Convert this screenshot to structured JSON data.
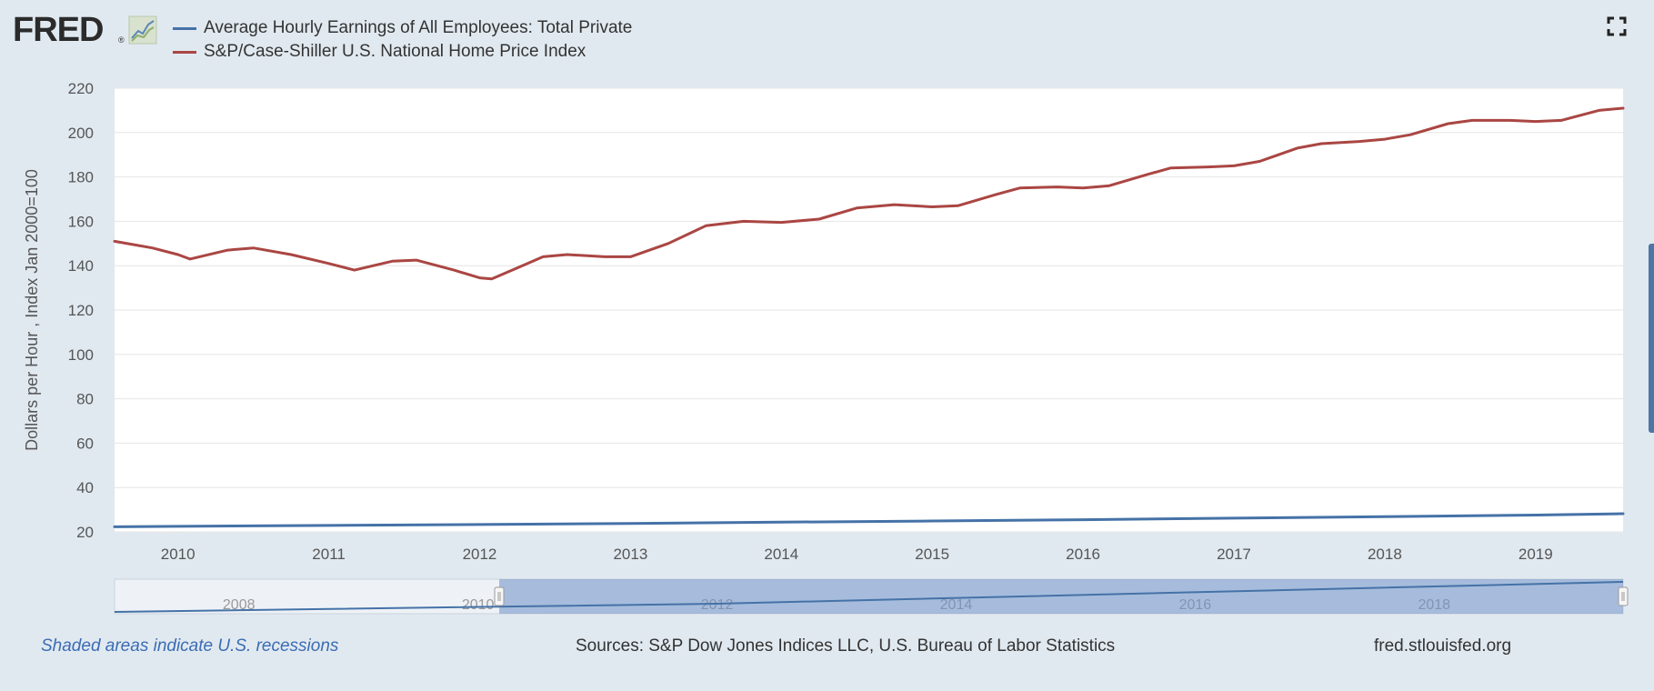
{
  "logo": {
    "text": "FRED",
    "reg": "®"
  },
  "legend": [
    {
      "label": "Average Hourly Earnings of All Employees: Total Private",
      "color": "#4572a7"
    },
    {
      "label": "S&P/Case-Shiller U.S. National Home Price Index",
      "color": "#aa4643"
    }
  ],
  "footer": {
    "recession_note": "Shaded areas indicate U.S. recessions",
    "sources": "Sources: S&P Dow Jones Indices LLC, U.S. Bureau of Labor Statistics",
    "site": "fred.stlouisfed.org"
  },
  "chart_data": {
    "type": "line",
    "ylabel": "Dollars per Hour , Index Jan 2000=100",
    "xlim": [
      2009.58,
      2019.58
    ],
    "ylim": [
      20,
      220
    ],
    "x_ticks": [
      2010,
      2011,
      2012,
      2013,
      2014,
      2015,
      2016,
      2017,
      2018,
      2019
    ],
    "y_ticks": [
      20,
      40,
      60,
      80,
      100,
      120,
      140,
      160,
      180,
      200,
      220
    ],
    "grid": true,
    "legend_position": "top-left",
    "series": [
      {
        "name": "Average Hourly Earnings of All Employees: Total Private",
        "color": "#4572a7",
        "x": [
          2009.58,
          2010.0,
          2011.0,
          2012.0,
          2013.0,
          2014.0,
          2015.0,
          2016.0,
          2017.0,
          2018.0,
          2019.0,
          2019.58
        ],
        "y": [
          22.3,
          22.5,
          22.9,
          23.3,
          23.8,
          24.4,
          24.9,
          25.5,
          26.2,
          26.9,
          27.6,
          28.2
        ]
      },
      {
        "name": "S&P/Case-Shiller U.S. National Home Price Index",
        "color": "#aa4643",
        "x": [
          2009.58,
          2009.83,
          2010.0,
          2010.08,
          2010.33,
          2010.5,
          2010.75,
          2011.0,
          2011.17,
          2011.42,
          2011.58,
          2011.83,
          2012.0,
          2012.08,
          2012.25,
          2012.42,
          2012.58,
          2012.83,
          2013.0,
          2013.25,
          2013.5,
          2013.75,
          2014.0,
          2014.25,
          2014.5,
          2014.75,
          2015.0,
          2015.17,
          2015.42,
          2015.58,
          2015.83,
          2016.0,
          2016.17,
          2016.42,
          2016.58,
          2016.83,
          2017.0,
          2017.17,
          2017.42,
          2017.58,
          2017.83,
          2018.0,
          2018.17,
          2018.42,
          2018.58,
          2018.83,
          2019.0,
          2019.17,
          2019.42,
          2019.58
        ],
        "y": [
          151,
          148,
          145,
          143,
          147,
          148,
          145,
          141,
          138,
          142,
          142.5,
          138,
          134.5,
          134,
          139,
          144,
          145,
          144,
          144,
          150,
          158,
          160,
          159.5,
          161,
          166,
          167.5,
          166.5,
          167,
          172,
          175,
          175.5,
          175,
          176,
          181,
          184,
          184.5,
          185,
          187,
          193,
          195,
          196,
          197,
          199,
          204,
          205.5,
          205.5,
          205,
          205.5,
          210,
          211
        ]
      }
    ],
    "navigator": {
      "x_labels": [
        2008,
        2010,
        2012,
        2014,
        2016,
        2018
      ],
      "window": [
        2009.58,
        2019.58
      ]
    }
  }
}
